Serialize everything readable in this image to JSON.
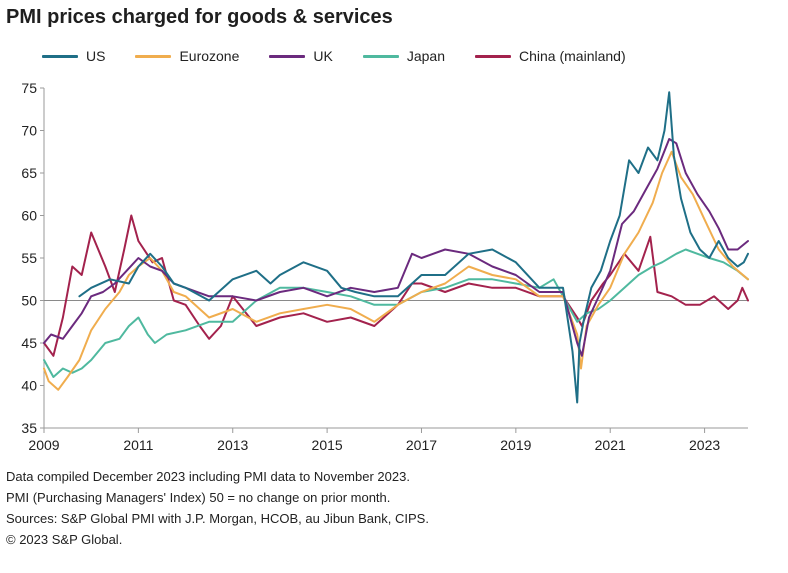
{
  "chart_data": {
    "type": "line",
    "title": "PMI prices charged for goods & services",
    "xlabel": "",
    "ylabel": "",
    "xlim": [
      2009,
      2023.92
    ],
    "ylim": [
      35,
      75
    ],
    "yticks": [
      35,
      40,
      45,
      50,
      55,
      60,
      65,
      70,
      75
    ],
    "xticks": [
      "2009",
      "2011",
      "2013",
      "2015",
      "2017",
      "2019",
      "2021",
      "2023"
    ],
    "reference_line": 50,
    "grid": false,
    "legend": "top",
    "series": [
      {
        "name": "US",
        "color": "#1f6f87",
        "x": [
          2009.75,
          2010.0,
          2010.4,
          2010.8,
          2011.0,
          2011.25,
          2011.5,
          2011.75,
          2012.0,
          2012.5,
          2013.0,
          2013.5,
          2013.8,
          2014.0,
          2014.5,
          2015.0,
          2015.3,
          2015.6,
          2016.0,
          2016.5,
          2017.0,
          2017.5,
          2018.0,
          2018.5,
          2019.0,
          2019.5,
          2020.0,
          2020.2,
          2020.3,
          2020.35,
          2020.45,
          2020.6,
          2020.8,
          2021.0,
          2021.2,
          2021.4,
          2021.6,
          2021.8,
          2022.0,
          2022.15,
          2022.25,
          2022.35,
          2022.5,
          2022.7,
          2022.9,
          2023.1,
          2023.3,
          2023.5,
          2023.7,
          2023.83,
          2023.92
        ],
        "y": [
          50.5,
          51.5,
          52.5,
          52.0,
          54.0,
          55.5,
          54.0,
          52.0,
          51.5,
          50.0,
          52.5,
          53.5,
          52.0,
          53.0,
          54.5,
          53.5,
          51.5,
          51.0,
          50.5,
          50.5,
          53.0,
          53.0,
          55.5,
          56.0,
          54.5,
          51.5,
          51.5,
          44.0,
          38.0,
          45.0,
          48.0,
          51.5,
          53.5,
          57.0,
          60.0,
          66.5,
          65.0,
          68.0,
          66.5,
          70.0,
          74.5,
          67.0,
          62.0,
          58.0,
          56.0,
          55.0,
          57.0,
          55.0,
          54.0,
          54.5,
          55.5
        ]
      },
      {
        "name": "Eurozone",
        "color": "#f0ad4e",
        "x": [
          2009.0,
          2009.1,
          2009.3,
          2009.5,
          2009.75,
          2010.0,
          2010.3,
          2010.6,
          2010.8,
          2011.0,
          2011.25,
          2011.5,
          2011.75,
          2012.0,
          2012.5,
          2013.0,
          2013.5,
          2014.0,
          2014.5,
          2015.0,
          2015.5,
          2016.0,
          2016.5,
          2017.0,
          2017.5,
          2018.0,
          2018.5,
          2019.0,
          2019.5,
          2020.0,
          2020.3,
          2020.38,
          2020.5,
          2020.75,
          2021.0,
          2021.3,
          2021.6,
          2021.9,
          2022.1,
          2022.3,
          2022.5,
          2022.75,
          2023.0,
          2023.3,
          2023.6,
          2023.92
        ],
        "y": [
          42.0,
          40.5,
          39.5,
          41.0,
          43.0,
          46.5,
          49.0,
          51.0,
          53.0,
          54.0,
          55.0,
          53.5,
          51.0,
          50.5,
          48.0,
          49.0,
          47.5,
          48.5,
          49.0,
          49.5,
          49.0,
          47.5,
          49.5,
          51.0,
          52.0,
          54.0,
          53.0,
          52.5,
          50.5,
          50.5,
          46.0,
          42.0,
          47.0,
          49.5,
          51.5,
          55.5,
          58.0,
          61.5,
          65.0,
          67.5,
          64.5,
          62.5,
          59.5,
          56.0,
          54.0,
          52.5
        ]
      },
      {
        "name": "UK",
        "color": "#6b2a7e",
        "x": [
          2009.0,
          2009.15,
          2009.4,
          2009.6,
          2009.8,
          2010.0,
          2010.25,
          2010.5,
          2010.75,
          2011.0,
          2011.25,
          2011.5,
          2011.75,
          2012.0,
          2012.5,
          2013.0,
          2013.5,
          2014.0,
          2014.5,
          2015.0,
          2015.5,
          2016.0,
          2016.5,
          2016.8,
          2017.0,
          2017.5,
          2018.0,
          2018.5,
          2019.0,
          2019.5,
          2020.0,
          2020.3,
          2020.4,
          2020.55,
          2020.8,
          2021.0,
          2021.25,
          2021.5,
          2021.75,
          2022.0,
          2022.25,
          2022.4,
          2022.6,
          2022.85,
          2023.1,
          2023.3,
          2023.5,
          2023.7,
          2023.92
        ],
        "y": [
          45.0,
          46.0,
          45.5,
          47.0,
          48.5,
          50.5,
          51.0,
          52.0,
          53.5,
          55.0,
          54.0,
          53.5,
          52.0,
          51.5,
          50.5,
          50.5,
          50.0,
          51.0,
          51.5,
          50.5,
          51.5,
          51.0,
          51.5,
          55.5,
          55.0,
          56.0,
          55.5,
          54.0,
          53.0,
          51.0,
          51.0,
          45.0,
          43.5,
          48.0,
          51.0,
          53.5,
          59.0,
          60.5,
          63.0,
          65.5,
          69.0,
          68.5,
          65.0,
          62.5,
          60.5,
          58.5,
          56.0,
          56.0,
          57.0
        ]
      },
      {
        "name": "Japan",
        "color": "#4fb99f",
        "x": [
          2009.0,
          2009.2,
          2009.4,
          2009.6,
          2009.8,
          2010.0,
          2010.3,
          2010.6,
          2010.8,
          2011.0,
          2011.2,
          2011.35,
          2011.6,
          2012.0,
          2012.5,
          2013.0,
          2013.5,
          2014.0,
          2014.5,
          2015.0,
          2015.5,
          2016.0,
          2016.5,
          2017.0,
          2017.5,
          2018.0,
          2018.5,
          2019.0,
          2019.5,
          2019.8,
          2020.0,
          2020.3,
          2020.5,
          2020.75,
          2021.0,
          2021.3,
          2021.6,
          2021.9,
          2022.1,
          2022.4,
          2022.6,
          2022.85,
          2023.1,
          2023.4,
          2023.7,
          2023.92
        ],
        "y": [
          43.0,
          41.0,
          42.0,
          41.5,
          42.0,
          43.0,
          45.0,
          45.5,
          47.0,
          48.0,
          46.0,
          45.0,
          46.0,
          46.5,
          47.5,
          47.5,
          50.0,
          51.5,
          51.5,
          51.0,
          50.5,
          49.5,
          49.5,
          51.0,
          51.5,
          52.5,
          52.5,
          52.0,
          51.5,
          52.5,
          50.5,
          47.5,
          48.5,
          49.0,
          50.0,
          51.5,
          53.0,
          54.0,
          54.5,
          55.5,
          56.0,
          55.5,
          55.0,
          54.5,
          53.5,
          52.5
        ]
      },
      {
        "name": "China (mainland)",
        "color": "#a3224d",
        "x": [
          2009.0,
          2009.2,
          2009.4,
          2009.6,
          2009.8,
          2010.0,
          2010.3,
          2010.5,
          2010.7,
          2010.85,
          2011.0,
          2011.3,
          2011.5,
          2011.75,
          2012.0,
          2012.3,
          2012.5,
          2012.75,
          2013.0,
          2013.5,
          2014.0,
          2014.5,
          2015.0,
          2015.5,
          2016.0,
          2016.5,
          2016.8,
          2017.0,
          2017.5,
          2018.0,
          2018.5,
          2019.0,
          2019.5,
          2020.0,
          2020.3,
          2020.4,
          2020.6,
          2020.85,
          2021.0,
          2021.3,
          2021.6,
          2021.85,
          2022.0,
          2022.3,
          2022.6,
          2022.9,
          2023.2,
          2023.5,
          2023.7,
          2023.8,
          2023.92
        ],
        "y": [
          45.0,
          43.5,
          48.0,
          54.0,
          53.0,
          58.0,
          54.0,
          51.0,
          56.0,
          60.0,
          57.0,
          54.5,
          55.0,
          50.0,
          49.5,
          47.0,
          45.5,
          47.0,
          50.5,
          47.0,
          48.0,
          48.5,
          47.5,
          48.0,
          47.0,
          49.5,
          52.0,
          52.0,
          51.0,
          52.0,
          51.5,
          51.5,
          50.5,
          50.5,
          48.0,
          47.0,
          50.0,
          52.0,
          53.0,
          55.5,
          53.5,
          57.5,
          51.0,
          50.5,
          49.5,
          49.5,
          50.5,
          49.0,
          50.0,
          51.5,
          50.0
        ]
      }
    ]
  },
  "footer": {
    "line1": "Data compiled December 2023 including PMI data to November 2023.",
    "line2": "PMI (Purchasing Managers' Index) 50 = no change on prior month.",
    "line3": "Sources: S&P Global PMI with J.P. Morgan,  HCOB, au Jibun Bank, CIPS.",
    "line4": "© 2023 S&P Global."
  }
}
